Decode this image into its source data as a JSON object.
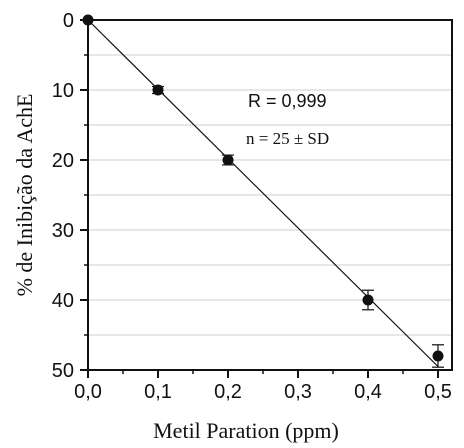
{
  "chart_data": {
    "type": "scatter",
    "xlabel": "Metil Paration (ppm)",
    "ylabel": "% de Inibição da AchE",
    "xlim": [
      0,
      0.52
    ],
    "ylim": [
      0,
      50
    ],
    "y_inverted": true,
    "grid": "horizontal",
    "x_ticks": [
      0.0,
      0.1,
      0.2,
      0.3,
      0.4,
      0.5
    ],
    "x_tick_labels": [
      "0,0",
      "0,1",
      "0,2",
      "0,3",
      "0,4",
      "0,5"
    ],
    "y_ticks": [
      0,
      10,
      20,
      30,
      40,
      50
    ],
    "y_tick_labels": [
      "0",
      "10",
      "20",
      "30",
      "40",
      "50"
    ],
    "series": [
      {
        "x": [
          0.0,
          0.1,
          0.2,
          0.4,
          0.5
        ],
        "y": [
          0,
          10,
          20,
          40,
          48
        ],
        "error": [
          0,
          0.5,
          0.7,
          1.4,
          1.6
        ]
      }
    ],
    "fit_line": {
      "x": [
        0.0,
        0.5
      ],
      "y": [
        0,
        49.5
      ]
    },
    "annotations": {
      "r": "R = 0,999",
      "n": "n = 25 ± SD"
    }
  }
}
